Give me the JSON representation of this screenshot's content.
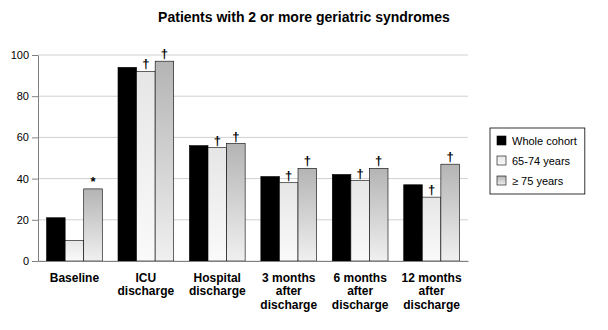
{
  "chart_data": {
    "type": "bar",
    "title": "Patients with 2 or more geriatric syndromes",
    "categories": [
      "Baseline",
      "ICU discharge",
      "Hospital discharge",
      "3 months after discharge",
      "6 months after discharge",
      "12 months after discharge"
    ],
    "series": [
      {
        "name": "Whole cohort",
        "color": "#000000",
        "values": [
          21,
          94,
          56,
          41,
          42,
          37
        ]
      },
      {
        "name": "65-74 years",
        "color": "#e6e6e6",
        "values": [
          10,
          92,
          55,
          38,
          39,
          31
        ]
      },
      {
        "name": "≥ 75 years",
        "color": "#b4b4b4",
        "values": [
          35,
          97,
          57,
          45,
          45,
          47
        ]
      }
    ],
    "annotations": [
      {
        "text": "*",
        "series": 2,
        "category": 0
      },
      {
        "text": "†",
        "series": 1,
        "category": 1
      },
      {
        "text": "†",
        "series": 2,
        "category": 1
      },
      {
        "text": "†",
        "series": 1,
        "category": 2
      },
      {
        "text": "†",
        "series": 2,
        "category": 2
      },
      {
        "text": "†",
        "series": 1,
        "category": 3
      },
      {
        "text": "†",
        "series": 2,
        "category": 3
      },
      {
        "text": "†",
        "series": 1,
        "category": 4
      },
      {
        "text": "†",
        "series": 2,
        "category": 4
      },
      {
        "text": "†",
        "series": 1,
        "category": 5
      },
      {
        "text": "†",
        "series": 2,
        "category": 5
      }
    ],
    "ylim": [
      0,
      100
    ],
    "yticks": [
      0,
      20,
      40,
      60,
      80,
      100
    ],
    "grid": true,
    "legend": "right"
  }
}
